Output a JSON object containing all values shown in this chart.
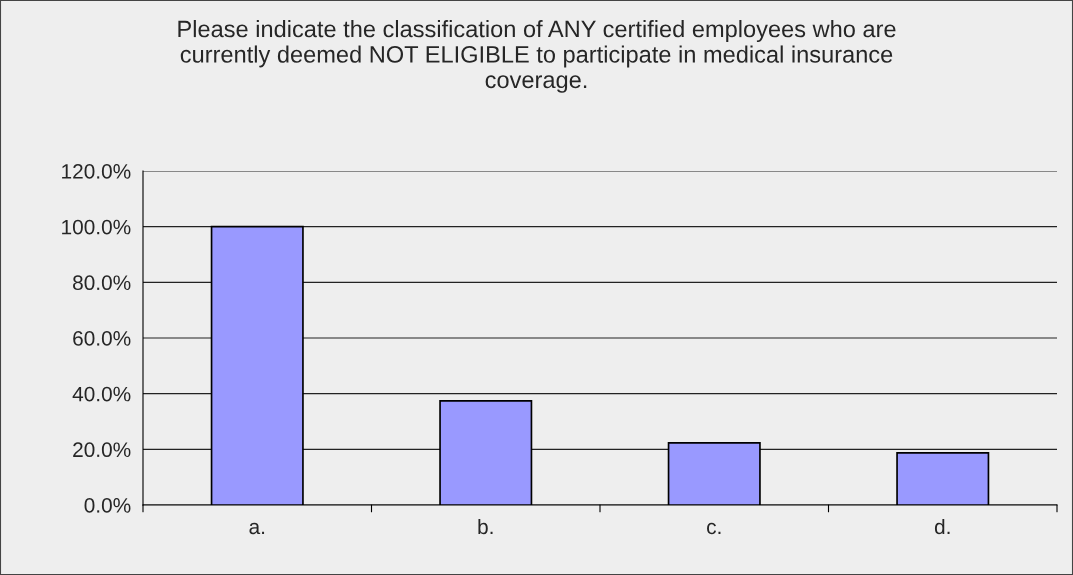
{
  "chart_data": {
    "type": "bar",
    "title": "Please indicate the classification of ANY certified employees who are currently deemed NOT ELIGIBLE to participate in medical insurance coverage.",
    "categories": [
      "a.",
      "b.",
      "c.",
      "d."
    ],
    "values": [
      100,
      37.4,
      22.3,
      18.7
    ],
    "color": "#9999ff",
    "ylim": [
      0,
      120
    ],
    "yticks": [
      {
        "value": 0,
        "label": "0.0%"
      },
      {
        "value": 20,
        "label": "20.0%"
      },
      {
        "value": 40,
        "label": "40.0%"
      },
      {
        "value": 60,
        "label": "60.0%"
      },
      {
        "value": 80,
        "label": "80.0%"
      },
      {
        "value": 100,
        "label": "100.0%"
      },
      {
        "value": 120,
        "label": "120.0%"
      }
    ],
    "grid": "y",
    "legend": false
  }
}
